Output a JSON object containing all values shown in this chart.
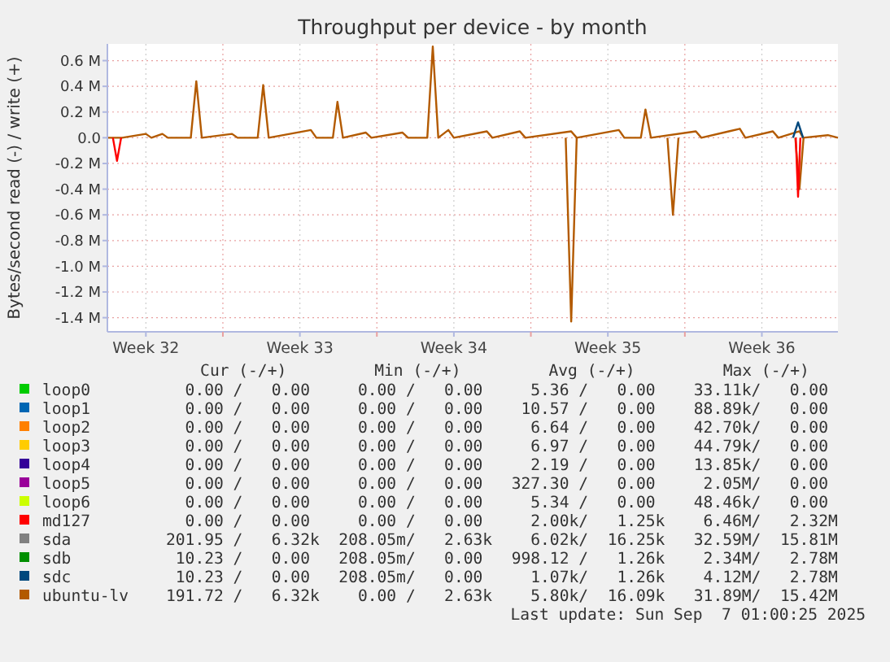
{
  "chart_data": {
    "type": "line",
    "title": "Throughput per device - by month",
    "ylabel": "Bytes/second read (-) / write (+)",
    "xlim": [
      "2025-08-05T18:00",
      "2025-09-07T23:00"
    ],
    "xticks": [
      {
        "value": "2025-08-07T12:00",
        "label": "Week 32"
      },
      {
        "value": "2025-08-14T12:00",
        "label": "Week 33"
      },
      {
        "value": "2025-08-21T12:00",
        "label": "Week 34"
      },
      {
        "value": "2025-08-28T12:00",
        "label": "Week 35"
      },
      {
        "value": "2025-09-04T12:00",
        "label": "Week 36"
      },
      {
        "value": "2025-08-11",
        "label": null
      },
      {
        "value": "2025-08-18",
        "label": null
      },
      {
        "value": "2025-08-25",
        "label": null
      },
      {
        "value": "2025-09-01",
        "label": null
      }
    ],
    "ylim": [
      -1510000,
      730000
    ],
    "yticks": [
      {
        "value": -1400000,
        "label": "-1.4 M"
      },
      {
        "value": -1200000,
        "label": "-1.2 M"
      },
      {
        "value": -1000000,
        "label": "-1.0 M"
      },
      {
        "value": -800000,
        "label": "-0.8 M"
      },
      {
        "value": -600000,
        "label": "-0.6 M"
      },
      {
        "value": -400000,
        "label": "-0.4 M"
      },
      {
        "value": -200000,
        "label": "-0.2 M"
      },
      {
        "value": 0,
        "label": "0.0"
      },
      {
        "value": 200000,
        "label": "0.2 M"
      },
      {
        "value": 400000,
        "label": "0.4 M"
      },
      {
        "value": 600000,
        "label": "0.6 M"
      }
    ],
    "grid": true,
    "legend": "bottom",
    "series": [
      {
        "name": "loop0",
        "color": "#00cc00",
        "values": [
          null
        ]
      },
      {
        "name": "loop1",
        "color": "#0066b3",
        "values": [
          null
        ]
      },
      {
        "name": "loop2",
        "color": "#ff8000",
        "values": [
          null
        ]
      },
      {
        "name": "loop3",
        "color": "#ffcc00",
        "values": [
          null
        ]
      },
      {
        "name": "loop4",
        "color": "#330099",
        "values": [
          null
        ]
      },
      {
        "name": "loop5",
        "color": "#990099",
        "values": [
          null
        ]
      },
      {
        "name": "loop6",
        "color": "#ccff00",
        "values": [
          null
        ]
      },
      {
        "name": "md127",
        "color": "#ff0000",
        "x": [
          "2025-08-06T00:00",
          "2025-08-06T04:30",
          "2025-08-06T09:00",
          "2025-08-20T00:00",
          "2025-09-06T01:00",
          "2025-09-06T03:30",
          "2025-09-06T06:00"
        ],
        "values": [
          0,
          -180000,
          0,
          null,
          0,
          -460000,
          0
        ]
      },
      {
        "name": "sda",
        "color": "#808080",
        "values": [
          null
        ]
      },
      {
        "name": "sdb",
        "color": "#008f00",
        "values": [
          null
        ]
      },
      {
        "name": "sdc",
        "color": "#00487d",
        "x": [
          "2025-09-05T22:00",
          "2025-09-06T03:30",
          "2025-09-06T09:00"
        ],
        "values": [
          0,
          120000,
          0
        ]
      },
      {
        "color": "#b35a00",
        "x": [
          "2025-08-26T14:00",
          "2025-08-26T20:00",
          "2025-08-27T02:00",
          "2025-08-29T00:00",
          "2025-08-31T05:00",
          "2025-08-31T11:00",
          "2025-08-31T17:00",
          "2025-09-03T00:00",
          "2025-09-06T00:30",
          "2025-09-06T05:00",
          "2025-09-06T09:30"
        ],
        "values": [
          0,
          -1430000,
          0,
          null,
          0,
          -600000,
          0,
          null,
          0,
          -400000,
          0
        ]
      },
      {
        "name": "ubuntu-lv",
        "color": "#b35a00",
        "x": [
          "2025-08-05T18:00",
          "2025-08-06T10:00",
          "2025-08-07T12:00",
          "2025-08-07T18:00",
          "2025-08-08T06:00",
          "2025-08-08T12:00",
          "2025-08-09T13:00",
          "2025-08-09T19:00",
          "2025-08-10T01:00",
          "2025-08-11T10:00",
          "2025-08-11T16:00",
          "2025-08-12T14:00",
          "2025-08-12T20:00",
          "2025-08-13T02:00",
          "2025-08-15T00:00",
          "2025-08-15T06:00",
          "2025-08-16T00:00",
          "2025-08-16T05:00",
          "2025-08-16T11:00",
          "2025-08-17T12:00",
          "2025-08-17T18:00",
          "2025-08-19T04:00",
          "2025-08-19T10:00",
          "2025-08-20T07:00",
          "2025-08-20T13:00",
          "2025-08-20T19:00",
          "2025-08-21T06:00",
          "2025-08-21T12:00",
          "2025-08-23T00:00",
          "2025-08-23T06:00",
          "2025-08-24T12:00",
          "2025-08-24T18:00",
          "2025-08-26T20:00",
          "2025-08-27T02:00",
          "2025-08-29T00:00",
          "2025-08-29T06:00",
          "2025-08-30T00:00",
          "2025-08-30T05:00",
          "2025-08-30T11:00",
          "2025-09-01T12:00",
          "2025-09-01T18:00",
          "2025-09-03T00:00",
          "2025-09-03T12:00",
          "2025-09-03T18:00",
          "2025-09-05T00:00",
          "2025-09-05T06:00",
          "2025-09-06T05:00",
          "2025-09-06T09:00",
          "2025-09-07T12:00",
          "2025-09-07T23:00"
        ],
        "values": [
          0,
          0,
          30000,
          0,
          30000,
          0,
          0,
          440000,
          0,
          30000,
          0,
          0,
          410000,
          0,
          60000,
          0,
          0,
          280000,
          0,
          40000,
          0,
          40000,
          0,
          0,
          710000,
          0,
          60000,
          0,
          50000,
          0,
          50000,
          0,
          50000,
          0,
          60000,
          0,
          0,
          220000,
          0,
          50000,
          0,
          50000,
          70000,
          0,
          50000,
          0,
          50000,
          0,
          20000,
          0
        ]
      }
    ],
    "annotations": [
      "Cur (-/+)",
      "Min (-/+)",
      "Avg (-/+)",
      "Max (-/+)",
      "  0.00 /   0.00     0.00 /   0.00     5.36 /   0.00    33.11k/   0.00 ",
      "  0.00 /   0.00     0.00 /   0.00    10.57 /   0.00    88.89k/   0.00 ",
      "  0.00 /   0.00     0.00 /   0.00     6.64 /   0.00    42.70k/   0.00 ",
      "  0.00 /   0.00     0.00 /   0.00     6.97 /   0.00    44.79k/   0.00 ",
      "  0.00 /   0.00     0.00 /   0.00     2.19 /   0.00    13.85k/   0.00 ",
      "  0.00 /   0.00     0.00 /   0.00   327.30 /   0.00     2.05M/   0.00 ",
      "  0.00 /   0.00     0.00 /   0.00     5.34 /   0.00    48.46k/   0.00 ",
      "  0.00 /   0.00     0.00 /   0.00     2.00k/   1.25k    6.46M/   2.32M",
      "201.95 /   6.32k  208.05m/   2.63k    6.02k/  16.25k   32.59M/  15.81M",
      " 10.23 /   0.00   208.05m/   0.00   998.12 /   1.26k    2.34M/   2.78M",
      " 10.23 /   0.00   208.05m/   0.00     1.07k/   1.26k    4.12M/   2.78M",
      "191.72 /   6.32k    0.00 /   2.63k    5.80k/  16.09k   31.89M/  15.42M",
      "Last update: Sun Sep  7 01:00:25 2025"
    ]
  }
}
